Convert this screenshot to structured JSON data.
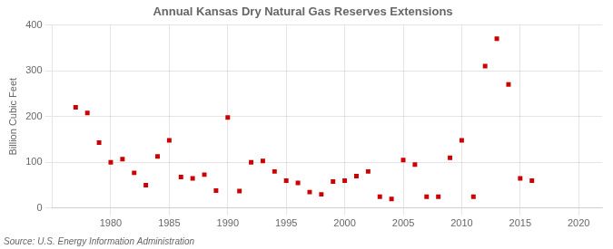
{
  "chart_data": {
    "type": "scatter",
    "title": "Annual Kansas Dry Natural Gas Reserves Extensions",
    "ylabel": "Billion Cubic Feet",
    "annotations": [
      "Source: U.S. Energy Information Administration"
    ],
    "x": [
      1977,
      1978,
      1979,
      1980,
      1981,
      1982,
      1983,
      1984,
      1985,
      1986,
      1987,
      1988,
      1989,
      1990,
      1991,
      1992,
      1993,
      1994,
      1995,
      1996,
      1997,
      1998,
      1999,
      2000,
      2001,
      2002,
      2003,
      2004,
      2005,
      2006,
      2007,
      2008,
      2009,
      2010,
      2011,
      2012,
      2013,
      2014,
      2015,
      2016
    ],
    "values": [
      220,
      208,
      143,
      100,
      107,
      77,
      50,
      113,
      148,
      68,
      65,
      73,
      38,
      198,
      37,
      100,
      103,
      80,
      60,
      55,
      35,
      30,
      58,
      60,
      70,
      80,
      25,
      20,
      105,
      95,
      25,
      25,
      110,
      148,
      25,
      310,
      370,
      270,
      65,
      60
    ],
    "color": "#cc0000",
    "marker": "square",
    "xlim": [
      1975,
      2022
    ],
    "ylim": [
      0,
      400
    ],
    "xticks": [
      1980,
      1985,
      1990,
      1995,
      2000,
      2005,
      2010,
      2015,
      2020
    ],
    "yticks": [
      0,
      100,
      200,
      300,
      400
    ],
    "grid": true
  }
}
